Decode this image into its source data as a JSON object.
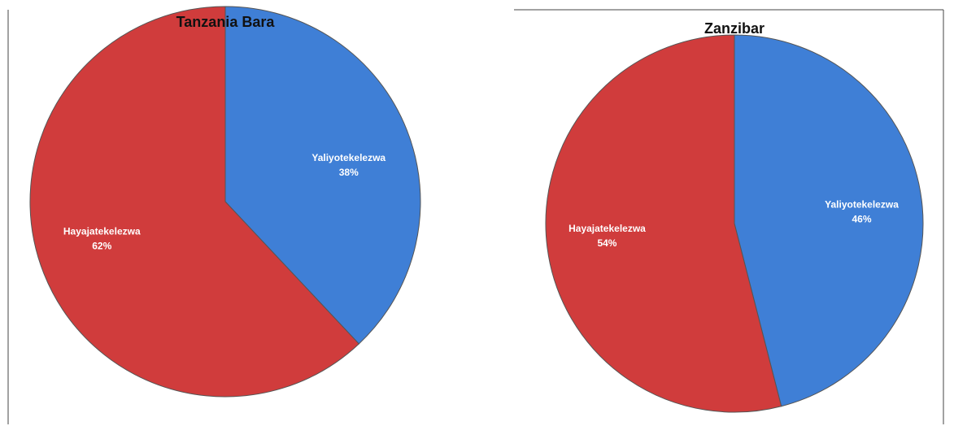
{
  "chart_data": [
    {
      "type": "pie",
      "title": "Tanzania Bara",
      "categories": [
        "Yaliyotekelezwa",
        "Hayajatekelezwa"
      ],
      "values": [
        38,
        62
      ],
      "value_labels": [
        "38%",
        "62%"
      ],
      "colors": [
        "#3f7fd6",
        "#d03c3c"
      ]
    },
    {
      "type": "pie",
      "title": "Zanzibar",
      "categories": [
        "Yaliyotekelezwa",
        "Hayajatekelezwa"
      ],
      "values": [
        46,
        54
      ],
      "value_labels": [
        "46%",
        "54%"
      ],
      "colors": [
        "#3f7fd6",
        "#d03c3c"
      ]
    }
  ]
}
